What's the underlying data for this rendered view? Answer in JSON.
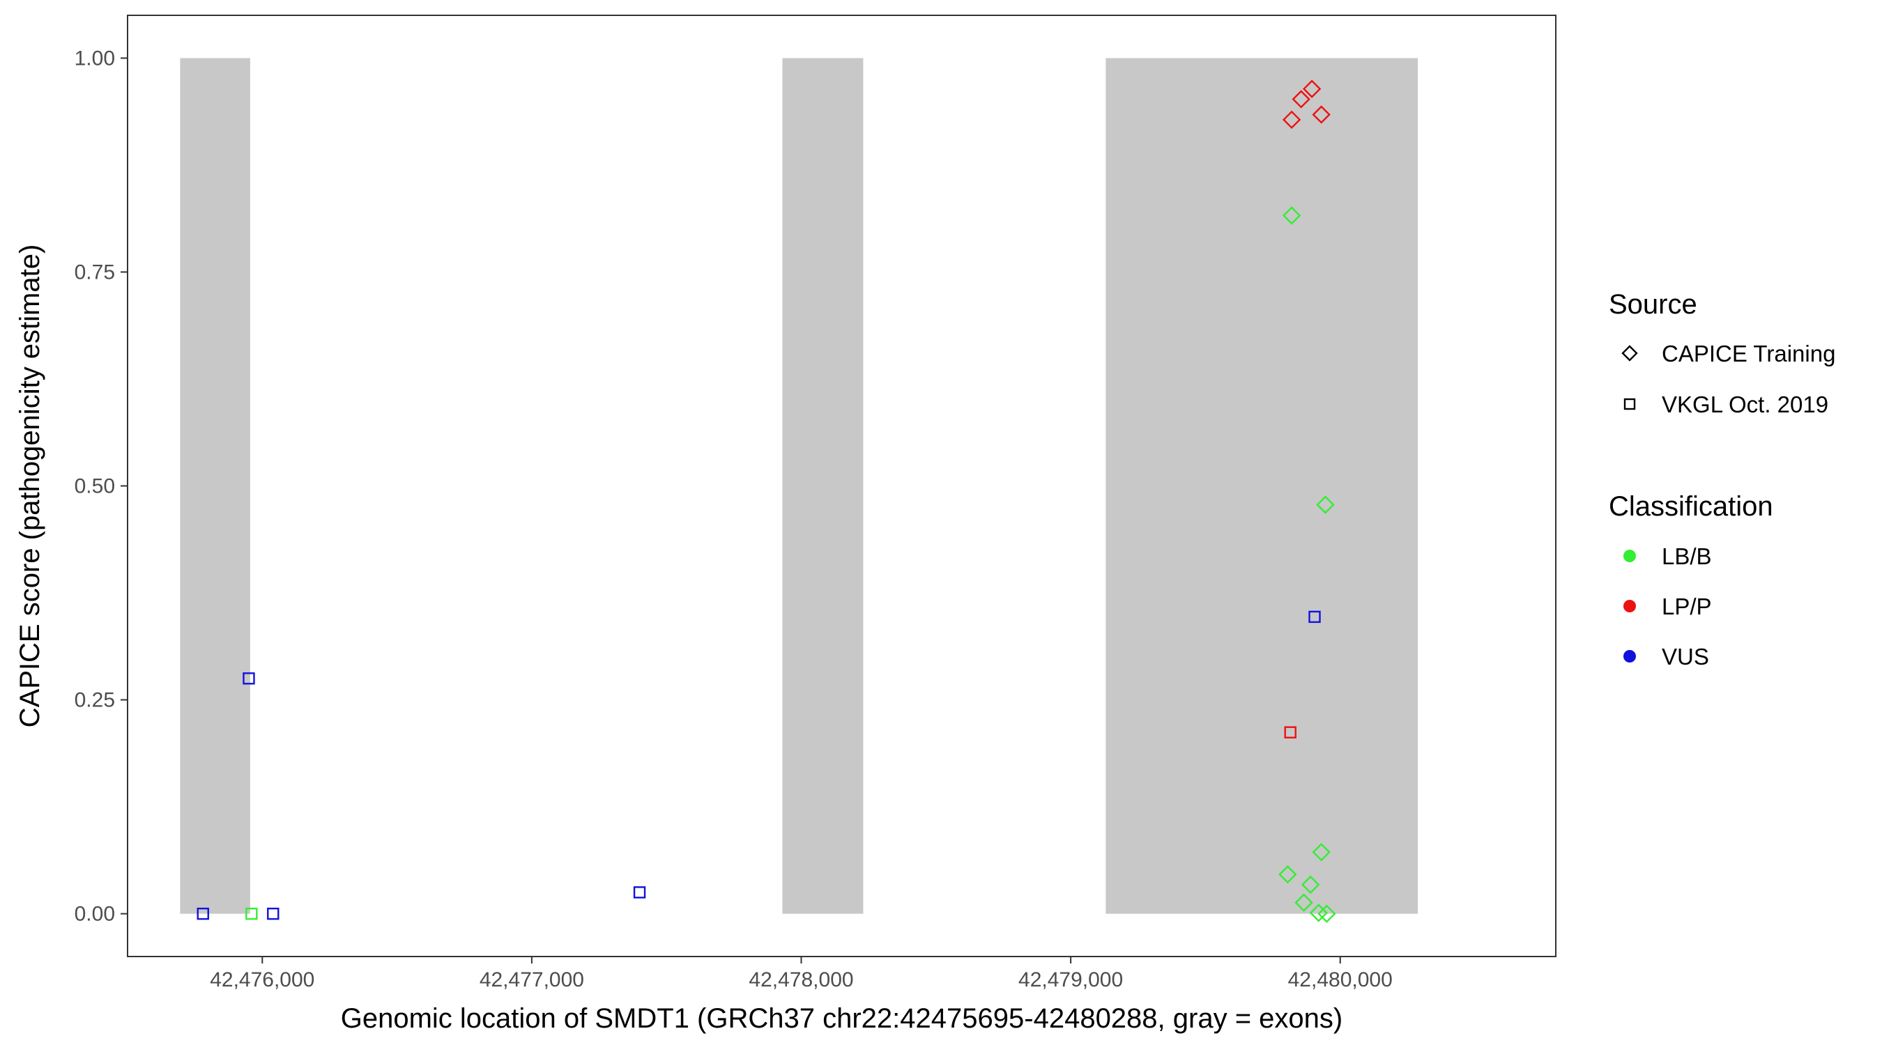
{
  "chart_data": {
    "type": "scatter",
    "xlabel": "Genomic location of SMDT1 (GRCh37 chr22:42475695-42480288, gray = exons)",
    "ylabel": "CAPICE score (pathogenicity estimate)",
    "xlim": [
      42475500,
      42480800
    ],
    "ylim": [
      -0.05,
      1.05
    ],
    "x_ticks": [
      42476000,
      42477000,
      42478000,
      42479000,
      42480000
    ],
    "x_tick_labels": [
      "42,476,000",
      "42,477,000",
      "42,478,000",
      "42,479,000",
      "42,480,000"
    ],
    "y_ticks": [
      0.0,
      0.25,
      0.5,
      0.75,
      1.0
    ],
    "y_tick_labels": [
      "0.00",
      "0.25",
      "0.50",
      "0.75",
      "1.00"
    ],
    "grid": false,
    "exons": [
      {
        "start": 42475695,
        "end": 42475955
      },
      {
        "start": 42477930,
        "end": 42478230
      },
      {
        "start": 42479130,
        "end": 42480288
      }
    ],
    "exon_color": "#c8c8c8",
    "exon_ymax": 1.0,
    "colors": {
      "LB/B": "#33ee33",
      "LP/P": "#ee1111",
      "VUS": "#1111dd"
    },
    "legend": {
      "position": "right",
      "source_title": "Source",
      "source_items": [
        {
          "label": "CAPICE Training",
          "shape": "diamond"
        },
        {
          "label": "VKGL Oct. 2019",
          "shape": "square"
        }
      ],
      "class_title": "Classification",
      "class_items": [
        {
          "label": "LB/B",
          "key": "LB/B"
        },
        {
          "label": "LP/P",
          "key": "LP/P"
        },
        {
          "label": "VUS",
          "key": "VUS"
        }
      ]
    },
    "points": [
      {
        "x": 42479820,
        "y": 0.928,
        "source": "CAPICE Training",
        "class": "LP/P"
      },
      {
        "x": 42479855,
        "y": 0.952,
        "source": "CAPICE Training",
        "class": "LP/P"
      },
      {
        "x": 42479895,
        "y": 0.964,
        "source": "CAPICE Training",
        "class": "LP/P"
      },
      {
        "x": 42479930,
        "y": 0.934,
        "source": "CAPICE Training",
        "class": "LP/P"
      },
      {
        "x": 42479820,
        "y": 0.816,
        "source": "CAPICE Training",
        "class": "LB/B"
      },
      {
        "x": 42479945,
        "y": 0.478,
        "source": "CAPICE Training",
        "class": "LB/B"
      },
      {
        "x": 42479930,
        "y": 0.072,
        "source": "CAPICE Training",
        "class": "LB/B"
      },
      {
        "x": 42479805,
        "y": 0.046,
        "source": "CAPICE Training",
        "class": "LB/B"
      },
      {
        "x": 42479890,
        "y": 0.034,
        "source": "CAPICE Training",
        "class": "LB/B"
      },
      {
        "x": 42479865,
        "y": 0.013,
        "source": "CAPICE Training",
        "class": "LB/B"
      },
      {
        "x": 42479920,
        "y": 0.001,
        "source": "CAPICE Training",
        "class": "LB/B"
      },
      {
        "x": 42479950,
        "y": 0.0,
        "source": "CAPICE Training",
        "class": "LB/B"
      },
      {
        "x": 42479905,
        "y": 0.347,
        "source": "VKGL Oct. 2019",
        "class": "VUS"
      },
      {
        "x": 42479815,
        "y": 0.212,
        "source": "VKGL Oct. 2019",
        "class": "LP/P"
      },
      {
        "x": 42475950,
        "y": 0.275,
        "source": "VKGL Oct. 2019",
        "class": "VUS"
      },
      {
        "x": 42475780,
        "y": 0.0,
        "source": "VKGL Oct. 2019",
        "class": "VUS"
      },
      {
        "x": 42475960,
        "y": 0.0,
        "source": "VKGL Oct. 2019",
        "class": "LB/B"
      },
      {
        "x": 42476040,
        "y": 0.0,
        "source": "VKGL Oct. 2019",
        "class": "VUS"
      },
      {
        "x": 42477400,
        "y": 0.025,
        "source": "VKGL Oct. 2019",
        "class": "VUS"
      }
    ]
  }
}
